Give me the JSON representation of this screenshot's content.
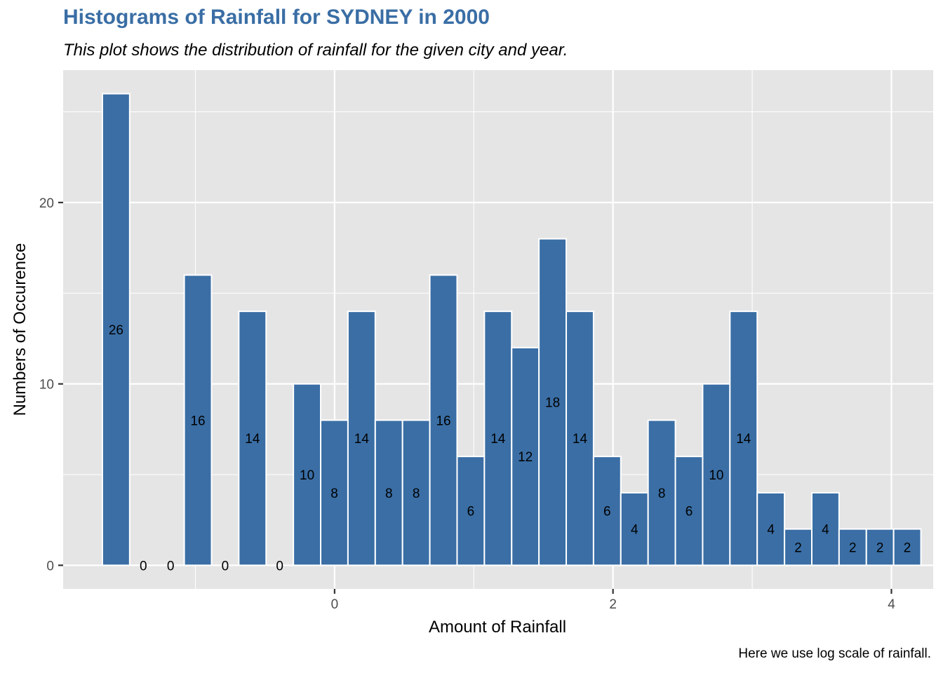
{
  "chart_data": {
    "type": "bar",
    "title": "Histograms of Rainfall for SYDNEY in 2000",
    "subtitle": "This plot shows the distribution of rainfall for the given city and year.",
    "caption": "Here we use log scale of rainfall.",
    "xlabel": "Amount of Rainfall",
    "ylabel": "Numbers of Occurence",
    "x_scale_note": "log scale of rainfall",
    "bin_width": 0.196,
    "bins_x": [
      -1.57,
      -1.374,
      -1.178,
      -0.982,
      -0.786,
      -0.59,
      -0.394,
      -0.198,
      -0.002,
      0.194,
      0.39,
      0.586,
      0.782,
      0.978,
      1.174,
      1.37,
      1.566,
      1.762,
      1.958,
      2.154,
      2.35,
      2.546,
      2.742,
      2.938,
      3.134,
      3.33,
      3.526,
      3.722,
      3.918,
      4.114
    ],
    "values": [
      26,
      0,
      0,
      16,
      0,
      14,
      0,
      10,
      8,
      14,
      8,
      8,
      16,
      6,
      14,
      12,
      18,
      14,
      6,
      4,
      8,
      6,
      10,
      14,
      4,
      2,
      4,
      2,
      2,
      2
    ],
    "x_ticks": [
      0,
      2,
      4
    ],
    "y_ticks": [
      0,
      10,
      20
    ],
    "xlim": [
      -1.95,
      4.3
    ],
    "ylim": [
      -1.3,
      27.3
    ],
    "grid": true,
    "colors": {
      "bar": "#3a6ea5",
      "bar_border": "#ffffff",
      "panel": "#e5e5e5",
      "grid": "#ffffff",
      "title": "#3a6ea5"
    }
  }
}
